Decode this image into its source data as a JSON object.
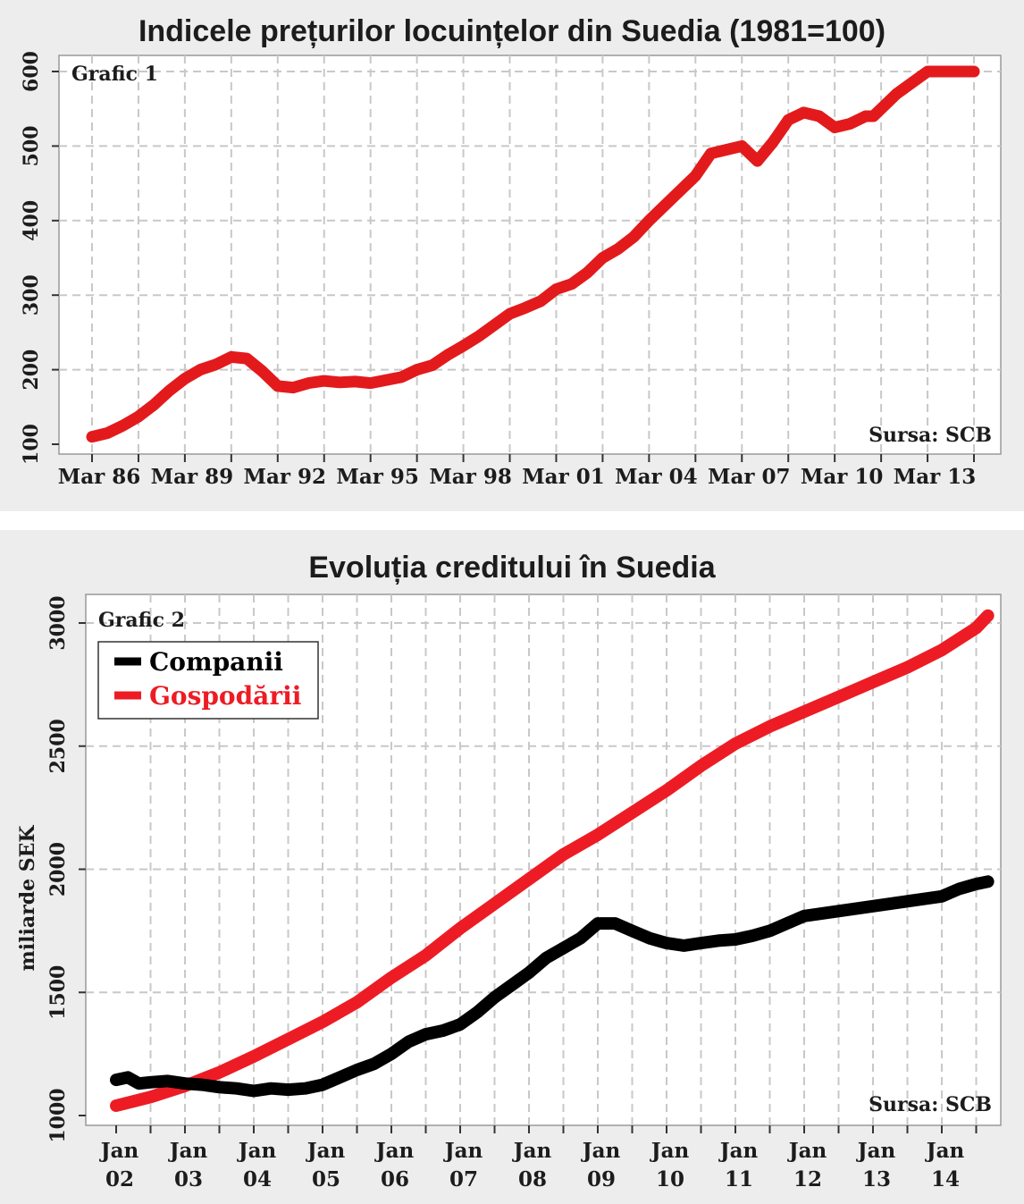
{
  "chart_data": [
    {
      "type": "line",
      "title": "Indicele prețurilor locuințelor din Suedia (1981=100)",
      "panel_label": "Grafic 1",
      "source": "Sursa: SCB",
      "ylabel": "",
      "xlabel": "",
      "ylim": [
        100,
        600
      ],
      "yticks": [
        100,
        200,
        300,
        400,
        500,
        600
      ],
      "xlim": [
        1986.0,
        2014.5
      ],
      "x_tick_labels": [
        {
          "x": 1986.0,
          "label": "Mar 86"
        },
        {
          "x": 1989.0,
          "label": "Mar 89"
        },
        {
          "x": 1992.0,
          "label": "Mar 92"
        },
        {
          "x": 1995.0,
          "label": "Mar 95"
        },
        {
          "x": 1998.0,
          "label": "Mar 98"
        },
        {
          "x": 2001.0,
          "label": "Mar 01"
        },
        {
          "x": 2004.0,
          "label": "Mar 04"
        },
        {
          "x": 2007.0,
          "label": "Mar 07"
        },
        {
          "x": 2010.0,
          "label": "Mar 10"
        },
        {
          "x": 2013.0,
          "label": "Mar 13"
        }
      ],
      "grid": true,
      "series": [
        {
          "color": "#e31a1c",
          "x": [
            1986.0,
            1986.5,
            1987.0,
            1987.5,
            1988.0,
            1988.5,
            1989.0,
            1989.5,
            1990.0,
            1990.5,
            1991.0,
            1991.5,
            1992.0,
            1992.5,
            1993.0,
            1993.5,
            1994.0,
            1994.5,
            1995.0,
            1995.5,
            1996.0,
            1996.5,
            1997.0,
            1997.5,
            1998.0,
            1998.5,
            1999.0,
            1999.5,
            2000.0,
            2000.5,
            2001.0,
            2001.5,
            2002.0,
            2002.5,
            2003.0,
            2003.5,
            2004.0,
            2004.5,
            2005.0,
            2005.5,
            2006.0,
            2006.5,
            2007.0,
            2007.5,
            2008.0,
            2008.25,
            2008.5,
            2008.75,
            2009.0,
            2009.5,
            2010.0,
            2010.5,
            2011.0,
            2011.25,
            2011.5,
            2012.0,
            2012.5,
            2013.0,
            2013.5,
            2014.0,
            2014.3,
            2014.5
          ],
          "y": [
            110,
            115,
            125,
            137,
            153,
            172,
            188,
            200,
            207,
            217,
            215,
            198,
            178,
            176,
            182,
            185,
            183,
            184,
            182,
            186,
            190,
            200,
            206,
            220,
            232,
            245,
            260,
            275,
            283,
            292,
            308,
            315,
            330,
            350,
            362,
            378,
            400,
            420,
            440,
            460,
            490,
            495,
            500,
            480,
            505,
            520,
            535,
            540,
            545,
            540,
            525,
            530,
            540,
            540,
            550,
            570,
            585,
            600,
            600,
            600,
            600,
            600
          ]
        }
      ]
    },
    {
      "type": "line",
      "title": "Evoluția creditului în Suedia",
      "panel_label": "Grafic 2",
      "source": "Sursa: SCB",
      "ylabel": "miliarde SEK",
      "xlabel": "",
      "ylim": [
        1000,
        3000
      ],
      "yticks": [
        1000,
        1500,
        2000,
        2500,
        3000
      ],
      "xlim": [
        2002.0,
        2014.75
      ],
      "x_tick_labels": [
        {
          "x": 2002,
          "line1": "Jan",
          "line2": "02"
        },
        {
          "x": 2003,
          "line1": "Jan",
          "line2": "03"
        },
        {
          "x": 2004,
          "line1": "Jan",
          "line2": "04"
        },
        {
          "x": 2005,
          "line1": "Jan",
          "line2": "05"
        },
        {
          "x": 2006,
          "line1": "Jan",
          "line2": "06"
        },
        {
          "x": 2007,
          "line1": "Jan",
          "line2": "07"
        },
        {
          "x": 2008,
          "line1": "Jan",
          "line2": "08"
        },
        {
          "x": 2009,
          "line1": "Jan",
          "line2": "09"
        },
        {
          "x": 2010,
          "line1": "Jan",
          "line2": "10"
        },
        {
          "x": 2011,
          "line1": "Jan",
          "line2": "11"
        },
        {
          "x": 2012,
          "line1": "Jan",
          "line2": "12"
        },
        {
          "x": 2013,
          "line1": "Jan",
          "line2": "13"
        },
        {
          "x": 2014,
          "line1": "Jan",
          "line2": "14"
        }
      ],
      "grid": true,
      "legend_position": "top-left",
      "series": [
        {
          "name": "Companii",
          "color": "#000000",
          "x": [
            2002.0,
            2002.17,
            2002.33,
            2002.5,
            2002.75,
            2003.0,
            2003.25,
            2003.5,
            2003.75,
            2004.0,
            2004.25,
            2004.5,
            2004.75,
            2005.0,
            2005.25,
            2005.5,
            2005.75,
            2006.0,
            2006.25,
            2006.5,
            2006.75,
            2007.0,
            2007.25,
            2007.5,
            2007.75,
            2008.0,
            2008.25,
            2008.5,
            2008.75,
            2009.0,
            2009.25,
            2009.5,
            2009.75,
            2010.0,
            2010.25,
            2010.5,
            2010.75,
            2011.0,
            2011.25,
            2011.5,
            2011.75,
            2012.0,
            2012.25,
            2012.5,
            2012.75,
            2013.0,
            2013.25,
            2013.5,
            2013.75,
            2014.0,
            2014.25,
            2014.5,
            2014.67
          ],
          "y": [
            1145,
            1155,
            1130,
            1135,
            1140,
            1130,
            1125,
            1115,
            1110,
            1100,
            1110,
            1105,
            1110,
            1125,
            1155,
            1185,
            1210,
            1250,
            1300,
            1330,
            1345,
            1370,
            1420,
            1480,
            1530,
            1580,
            1640,
            1680,
            1720,
            1780,
            1780,
            1750,
            1720,
            1700,
            1690,
            1700,
            1710,
            1715,
            1730,
            1750,
            1780,
            1810,
            1820,
            1830,
            1840,
            1850,
            1860,
            1870,
            1880,
            1890,
            1920,
            1940,
            1950
          ]
        },
        {
          "name": "Gospodării",
          "color": "#ed1c24",
          "x": [
            2002.0,
            2002.5,
            2003.0,
            2003.5,
            2004.0,
            2004.5,
            2005.0,
            2005.5,
            2006.0,
            2006.5,
            2007.0,
            2007.5,
            2008.0,
            2008.5,
            2009.0,
            2009.5,
            2010.0,
            2010.5,
            2011.0,
            2011.5,
            2012.0,
            2012.5,
            2013.0,
            2013.5,
            2014.0,
            2014.5,
            2014.67
          ],
          "y": [
            1040,
            1075,
            1120,
            1175,
            1240,
            1310,
            1380,
            1460,
            1560,
            1650,
            1760,
            1860,
            1960,
            2060,
            2140,
            2230,
            2320,
            2420,
            2510,
            2580,
            2640,
            2700,
            2760,
            2820,
            2890,
            2980,
            3030
          ]
        }
      ]
    }
  ]
}
